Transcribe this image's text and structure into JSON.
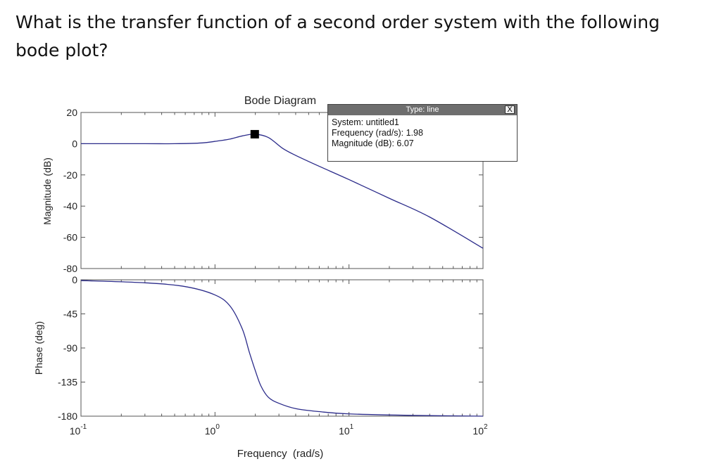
{
  "question": "What is the transfer function of a second order system with the following bode plot?",
  "colors": {
    "curve": "#2b2b8a",
    "axis": "#555555",
    "marker": "#000000",
    "tip_bar": "#6e6e6e"
  },
  "datatip": {
    "header": "Type: line",
    "close_label": "X",
    "lines": [
      "System: untitled1",
      "Frequency (rad/s): 1.98",
      "Magnitude (dB): 6.07"
    ]
  },
  "chart_data": {
    "type": "line",
    "title": "Bode Diagram",
    "xlabel": "Frequency  (rad/s)",
    "xscale": "log",
    "xlim": [
      0.1,
      100
    ],
    "xticks": [
      {
        "value": 0.1,
        "base": "10",
        "exp": "-1"
      },
      {
        "value": 1,
        "base": "10",
        "exp": "0"
      },
      {
        "value": 10,
        "base": "10",
        "exp": "1"
      },
      {
        "value": 100,
        "base": "10",
        "exp": "2"
      }
    ],
    "magnitude": {
      "ylabel": "Magnitude (dB)",
      "ylim": [
        -80,
        20
      ],
      "yticks": [
        20,
        0,
        -20,
        -40,
        -60,
        -80
      ],
      "x": [
        0.1,
        0.3,
        0.5,
        0.8,
        1.0,
        1.3,
        1.6,
        1.98,
        2.5,
        3.2,
        4.0,
        6.0,
        10,
        20,
        40,
        100
      ],
      "y": [
        0,
        0,
        0,
        0.5,
        1.5,
        3,
        5,
        6.07,
        4,
        -3,
        -7.5,
        -14.5,
        -23,
        -35,
        -47,
        -67
      ]
    },
    "phase": {
      "ylabel": "Phase (deg)",
      "ylim": [
        -180,
        0
      ],
      "yticks": [
        0,
        -45,
        -90,
        -135,
        -180
      ],
      "x": [
        0.1,
        0.3,
        0.6,
        1.0,
        1.3,
        1.6,
        1.8,
        2.0,
        2.2,
        2.5,
        3.0,
        4.0,
        6.0,
        10,
        30,
        100
      ],
      "y": [
        -1,
        -4,
        -9,
        -20,
        -35,
        -65,
        -95,
        -120,
        -140,
        -155,
        -163,
        -170,
        -174,
        -177,
        -179,
        -180
      ]
    },
    "marker": {
      "x": 1.98,
      "y": 6.07
    }
  }
}
